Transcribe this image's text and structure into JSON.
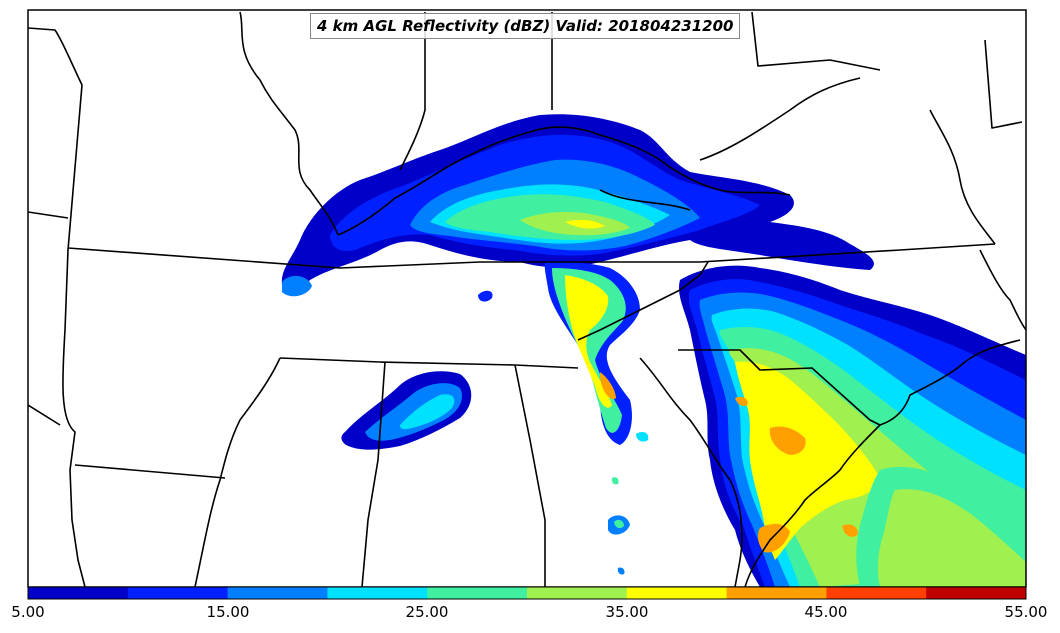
{
  "title": "4 km AGL Reflectivity (dBZ) Valid: 201804231200",
  "colorbar": {
    "labels": [
      "5.00",
      "15.00",
      "25.00",
      "35.00",
      "45.00",
      "55.00"
    ],
    "colors": [
      "#0000c8",
      "#0020ff",
      "#0080ff",
      "#00e0ff",
      "#40f0a0",
      "#a0f050",
      "#ffff00",
      "#ffa000",
      "#ff4000",
      "#c00000"
    ]
  },
  "map": {
    "background": "#ffffff",
    "boundary_color": "#000000"
  }
}
